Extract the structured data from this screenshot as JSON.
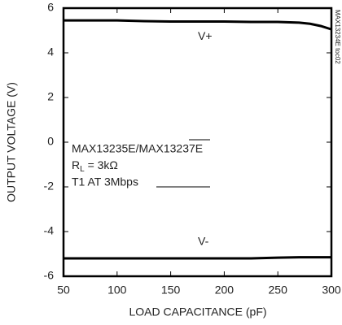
{
  "chart_data": {
    "type": "line",
    "x_label": "LOAD CAPACITANCE (pF)",
    "y_label": "OUTPUT VOLTAGE (V)",
    "x": [
      50,
      75,
      100,
      125,
      150,
      175,
      200,
      225,
      250,
      270,
      280,
      290,
      300
    ],
    "series": [
      {
        "name": "V+",
        "color": "#000000",
        "values": [
          5.45,
          5.45,
          5.45,
          5.42,
          5.4,
          5.4,
          5.4,
          5.38,
          5.38,
          5.35,
          5.3,
          5.2,
          5.05
        ]
      },
      {
        "name": "V-",
        "color": "#000000",
        "values": [
          -5.2,
          -5.2,
          -5.2,
          -5.2,
          -5.2,
          -5.2,
          -5.2,
          -5.2,
          -5.17,
          -5.15,
          -5.15,
          -5.15,
          -5.15
        ]
      }
    ],
    "xlim": [
      50,
      300
    ],
    "xticks": [
      50,
      100,
      150,
      200,
      250,
      300
    ],
    "ylim": [
      -6,
      6
    ],
    "yticks": [
      -6,
      -4,
      -2,
      0,
      2,
      4,
      6
    ],
    "grid": false,
    "annotations": [
      "MAX13235E/MAX13237E",
      {
        "main": "R",
        "sub": "L",
        "rest": " = 3kΩ"
      },
      "T1 AT 3Mbps"
    ],
    "side_note": "MAX13234E toc02"
  }
}
